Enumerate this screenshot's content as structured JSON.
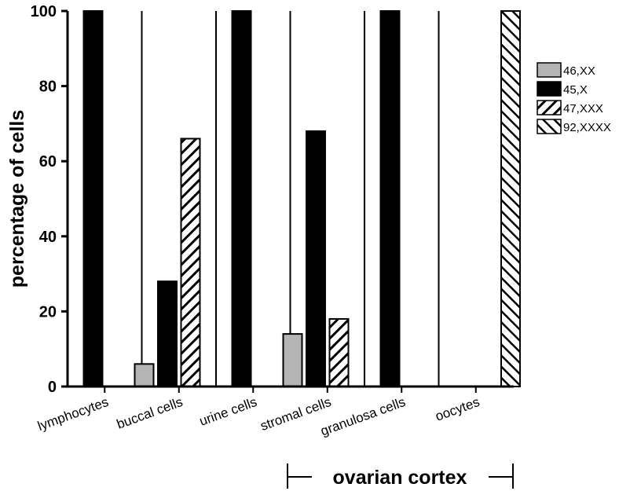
{
  "chart_data": {
    "type": "bar",
    "ylabel": "percentage of cells",
    "ylim": [
      0,
      100
    ],
    "yticks": [
      0,
      20,
      40,
      60,
      80,
      100
    ],
    "categories": [
      "lymphocytes",
      "buccal cells",
      "urine cells",
      "stromal cells",
      "granulosa cells",
      "oocytes"
    ],
    "series": [
      {
        "name": "46,XX",
        "values": [
          0,
          6,
          0,
          14,
          0,
          0
        ],
        "color": "#b4b4b4",
        "pattern": "solid"
      },
      {
        "name": "45,X",
        "values": [
          100,
          28,
          100,
          68,
          100,
          0
        ],
        "color": "#000000",
        "pattern": "solid"
      },
      {
        "name": "47,XXX",
        "values": [
          0,
          66,
          0,
          18,
          0,
          0
        ],
        "color": "#000000",
        "pattern": "hatch-up"
      },
      {
        "name": "92,XXXX",
        "values": [
          0,
          0,
          0,
          0,
          0,
          100
        ],
        "color": "#000000",
        "pattern": "hatch-down"
      }
    ],
    "group_label": {
      "text": "ovarian cortex",
      "from_category": 3,
      "to_category": 5
    },
    "legend": "right",
    "grid": false
  }
}
